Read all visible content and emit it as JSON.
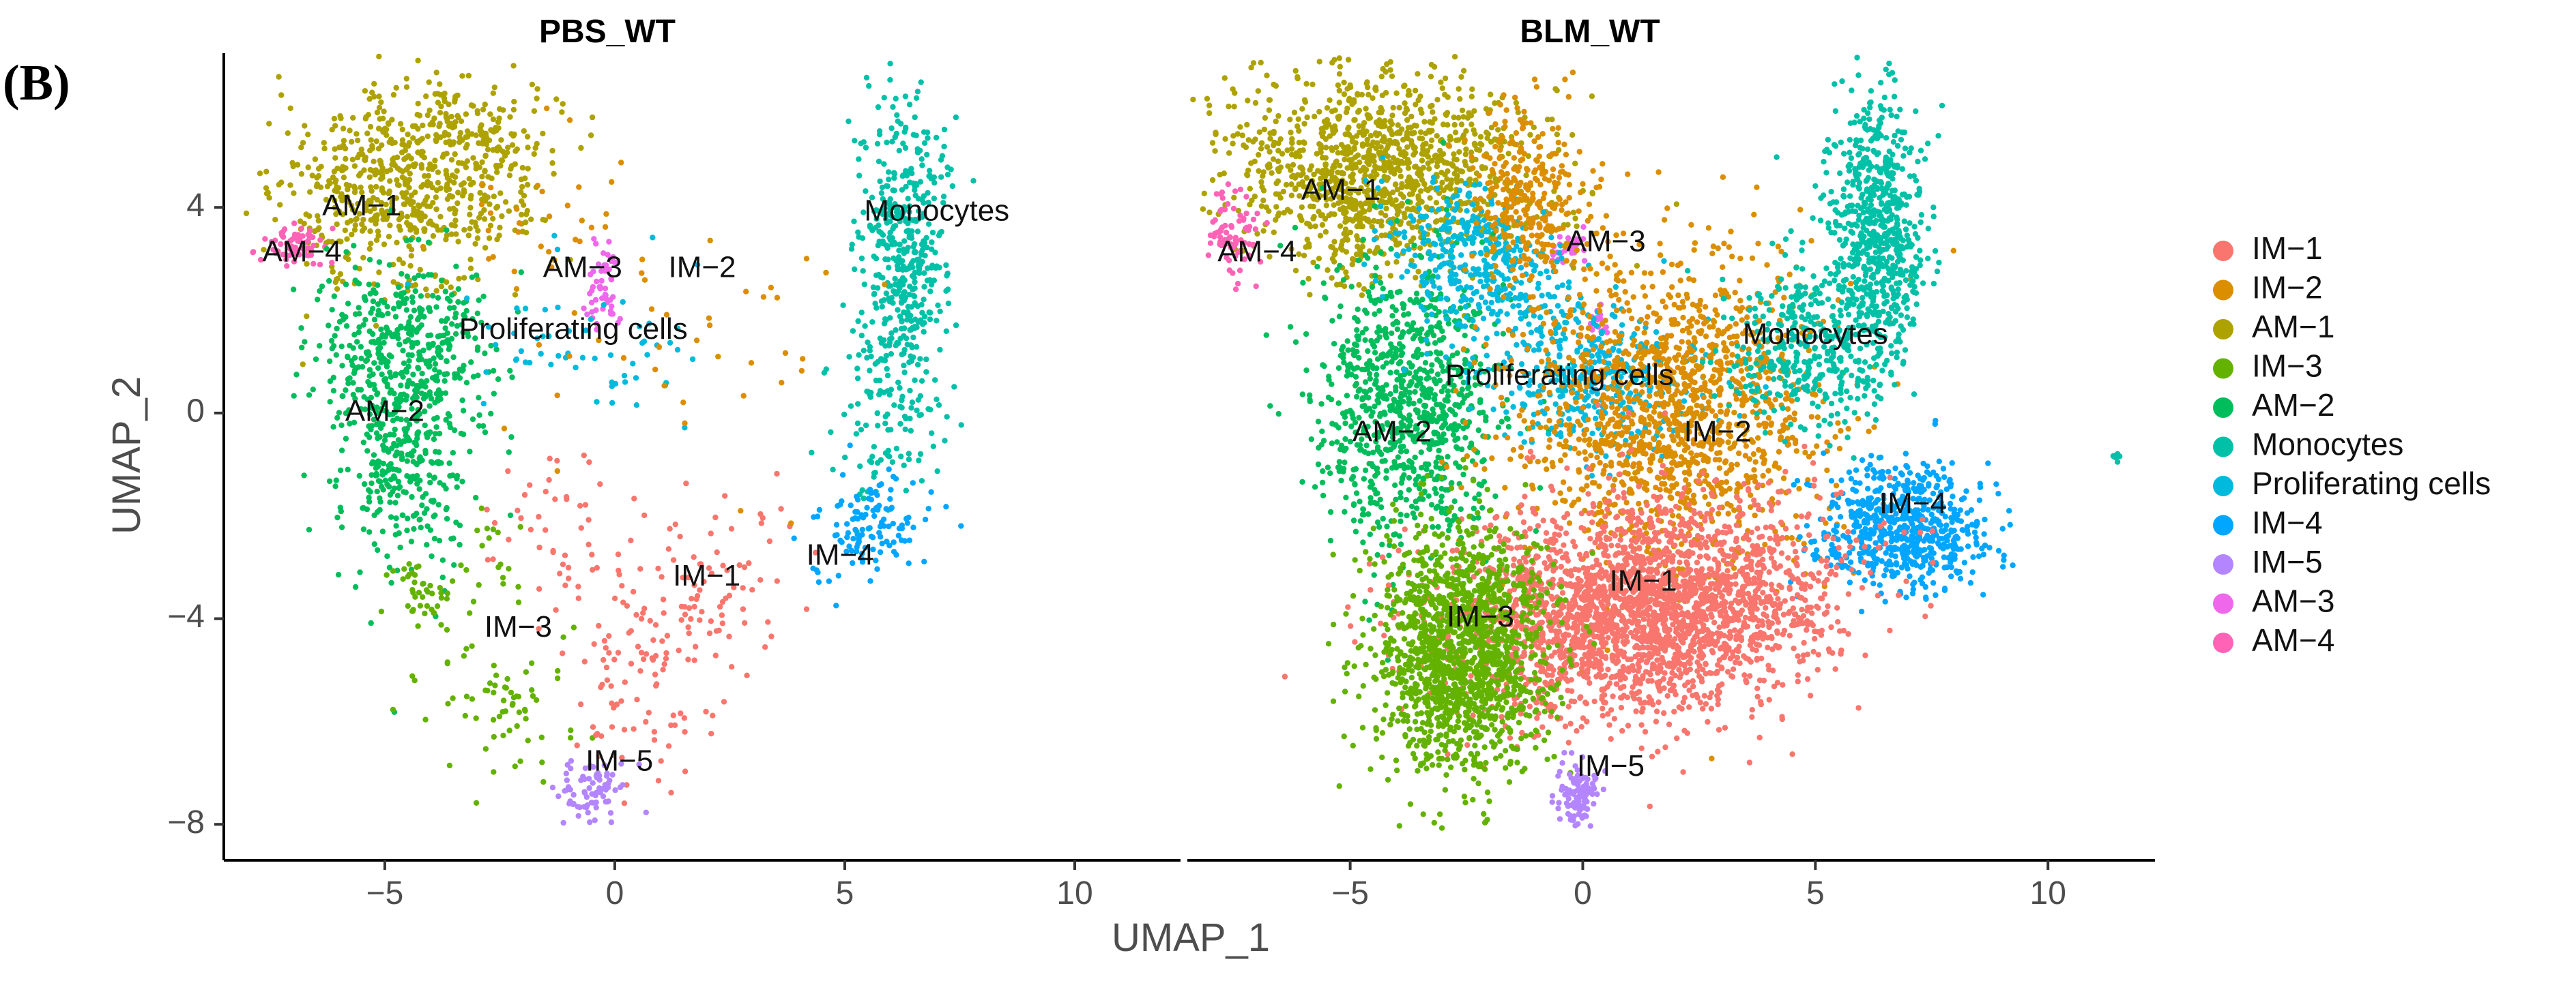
{
  "panel_label": "(B)",
  "colors": {
    "IM-1": "#F8766D",
    "IM-2": "#DB8E00",
    "AM-1": "#AEA200",
    "IM-3": "#64B200",
    "AM-2": "#00BD5C",
    "Monocytes": "#00C1A7",
    "Proliferating cells": "#00BADE",
    "IM-4": "#00A6FF",
    "IM-5": "#B385FF",
    "AM-3": "#EF67EB",
    "AM-4": "#FF63B6"
  },
  "chart_data": {
    "type": "scatter",
    "xlabel": "UMAP_1",
    "ylabel": "UMAP_2",
    "xlim": [
      -8.5,
      12.3
    ],
    "ylim": [
      -8.7,
      7.0
    ],
    "x_ticks": [
      -5,
      0,
      5,
      10
    ],
    "x_tick_labels": [
      "−5",
      "0",
      "5",
      "10"
    ],
    "y_ticks": [
      4,
      0,
      -4,
      -8
    ],
    "y_tick_labels": [
      "4",
      "0",
      "−4",
      "−8"
    ],
    "legend": {
      "position": "right",
      "entries": [
        "IM−1",
        "IM−2",
        "AM−1",
        "IM−3",
        "AM−2",
        "Monocytes",
        "Proliferating cells",
        "IM−4",
        "IM−5",
        "AM−3",
        "AM−4"
      ],
      "keys": [
        "IM-1",
        "IM-2",
        "AM-1",
        "IM-3",
        "AM-2",
        "Monocytes",
        "Proliferating cells",
        "IM-4",
        "IM-5",
        "AM-3",
        "AM-4"
      ]
    },
    "panels": [
      {
        "title": "PBS_WT",
        "labels": [
          {
            "text": "AM−1",
            "x": -5.5,
            "y": 4.0
          },
          {
            "text": "AM−4",
            "x": -6.8,
            "y": 3.1
          },
          {
            "text": "AM−3",
            "x": -0.7,
            "y": 2.8
          },
          {
            "text": "IM−2",
            "x": 1.9,
            "y": 2.8
          },
          {
            "text": "Monocytes",
            "x": 7.0,
            "y": 3.9
          },
          {
            "text": "Proliferating cells",
            "x": -0.9,
            "y": 1.6
          },
          {
            "text": "AM−2",
            "x": -5.0,
            "y": 0.0
          },
          {
            "text": "IM−1",
            "x": 2.0,
            "y": -3.2
          },
          {
            "text": "IM−4",
            "x": 4.9,
            "y": -2.8
          },
          {
            "text": "IM−3",
            "x": -2.1,
            "y": -4.2
          },
          {
            "text": "IM−5",
            "x": 0.1,
            "y": -6.8
          }
        ],
        "clusters": [
          {
            "name": "AM-1",
            "n": 600,
            "cx": -4.7,
            "cy": 4.3,
            "sx": 1.3,
            "sy": 1.0,
            "rot": 0.15
          },
          {
            "name": "AM-1",
            "n": 160,
            "cx": -3.0,
            "cy": 5.2,
            "sx": 0.8,
            "sy": 0.6,
            "rot": 0.0
          },
          {
            "name": "AM-4",
            "n": 70,
            "cx": -7.0,
            "cy": 3.25,
            "sx": 0.35,
            "sy": 0.2,
            "rot": 0.0
          },
          {
            "name": "AM-3",
            "n": 55,
            "cx": -0.2,
            "cy": 2.5,
            "sx": 0.18,
            "sy": 0.5,
            "rot": 0.0
          },
          {
            "name": "AM-2",
            "n": 420,
            "cx": -4.6,
            "cy": 1.4,
            "sx": 0.9,
            "sy": 0.9,
            "rot": 0.2
          },
          {
            "name": "AM-2",
            "n": 320,
            "cx": -4.6,
            "cy": -0.9,
            "sx": 0.7,
            "sy": 1.2,
            "rot": 0.0
          },
          {
            "name": "IM-3",
            "n": 45,
            "cx": -4.2,
            "cy": -3.6,
            "sx": 0.4,
            "sy": 0.4,
            "rot": 0.0
          },
          {
            "name": "IM-3",
            "n": 65,
            "cx": -2.3,
            "cy": -5.6,
            "sx": 0.9,
            "sy": 0.7,
            "rot": 0.0
          },
          {
            "name": "IM-3",
            "n": 20,
            "cx": -2.6,
            "cy": -2.6,
            "sx": 0.4,
            "sy": 0.6,
            "rot": 0.0
          },
          {
            "name": "Monocytes",
            "n": 480,
            "cx": 6.3,
            "cy": 3.0,
            "sx": 0.45,
            "sy": 1.5,
            "rot": 0.0
          },
          {
            "name": "Monocytes",
            "n": 80,
            "cx": 5.7,
            "cy": -0.2,
            "sx": 0.6,
            "sy": 0.9,
            "rot": 0.0
          },
          {
            "name": "IM-1",
            "n": 95,
            "cx": 2.0,
            "cy": -3.3,
            "sx": 1.2,
            "sy": 0.8,
            "rot": 0.35
          },
          {
            "name": "IM-1",
            "n": 80,
            "cx": 0.6,
            "cy": -5.3,
            "sx": 0.8,
            "sy": 1.0,
            "rot": 0.0
          },
          {
            "name": "IM-1",
            "n": 45,
            "cx": -1.4,
            "cy": -2.3,
            "sx": 0.7,
            "sy": 0.9,
            "rot": 0.0
          },
          {
            "name": "IM-4",
            "n": 120,
            "cx": 5.5,
            "cy": -2.3,
            "sx": 0.7,
            "sy": 0.45,
            "rot": 0.35
          },
          {
            "name": "IM-5",
            "n": 80,
            "cx": -0.5,
            "cy": -7.3,
            "sx": 0.35,
            "sy": 0.25,
            "rot": 0.0
          },
          {
            "name": "Proliferating cells",
            "n": 60,
            "cx": -0.5,
            "cy": 1.4,
            "sx": 1.3,
            "sy": 0.8,
            "rot": 0.0
          },
          {
            "name": "IM-2",
            "n": 40,
            "cx": 1.2,
            "cy": 1.8,
            "sx": 2.0,
            "sy": 1.5,
            "rot": 0.0
          },
          {
            "name": "IM-2",
            "n": 30,
            "cx": -1.6,
            "cy": 3.7,
            "sx": 0.8,
            "sy": 0.7,
            "rot": 0.0
          }
        ]
      },
      {
        "title": "BLM_WT",
        "labels": [
          {
            "text": "AM−1",
            "x": -5.2,
            "y": 4.3
          },
          {
            "text": "AM−4",
            "x": -7.0,
            "y": 3.1
          },
          {
            "text": "AM−3",
            "x": 0.5,
            "y": 3.3
          },
          {
            "text": "Monocytes",
            "x": 5.0,
            "y": 1.5
          },
          {
            "text": "Proliferating cells",
            "x": -0.5,
            "y": 0.7
          },
          {
            "text": "IM−2",
            "x": 2.9,
            "y": -0.4
          },
          {
            "text": "AM−2",
            "x": -4.1,
            "y": -0.4
          },
          {
            "text": "IM−4",
            "x": 7.1,
            "y": -1.8
          },
          {
            "text": "IM−1",
            "x": 1.3,
            "y": -3.3
          },
          {
            "text": "IM−3",
            "x": -2.2,
            "y": -4.0
          },
          {
            "text": "IM−5",
            "x": 0.6,
            "y": -6.9
          }
        ],
        "clusters": [
          {
            "name": "AM-1",
            "n": 1200,
            "cx": -4.3,
            "cy": 4.7,
            "sx": 1.6,
            "sy": 1.0,
            "rot": 0.0
          },
          {
            "name": "AM-4",
            "n": 80,
            "cx": -7.5,
            "cy": 3.5,
            "sx": 0.3,
            "sy": 0.4,
            "rot": 0.0
          },
          {
            "name": "AM-3",
            "n": 35,
            "cx": -0.3,
            "cy": 3.2,
            "sx": 0.2,
            "sy": 0.15,
            "rot": 0.0
          },
          {
            "name": "AM-3",
            "n": 20,
            "cx": 0.3,
            "cy": 1.8,
            "sx": 0.15,
            "sy": 0.2,
            "rot": 0.0
          },
          {
            "name": "AM-2",
            "n": 900,
            "cx": -3.8,
            "cy": 0.2,
            "sx": 1.0,
            "sy": 1.4,
            "rot": 0.0
          },
          {
            "name": "Proliferating cells",
            "n": 380,
            "cx": -2.2,
            "cy": 3.0,
            "sx": 1.0,
            "sy": 0.7,
            "rot": -0.4
          },
          {
            "name": "Proliferating cells",
            "n": 420,
            "cx": 0.2,
            "cy": 0.7,
            "sx": 1.2,
            "sy": 0.7,
            "rot": -0.2
          },
          {
            "name": "IM-2",
            "n": 1400,
            "cx": 1.8,
            "cy": 0.0,
            "sx": 1.6,
            "sy": 1.5,
            "rot": 0.0
          },
          {
            "name": "IM-2",
            "n": 300,
            "cx": -1.2,
            "cy": 4.2,
            "sx": 0.6,
            "sy": 0.9,
            "rot": 0.0
          },
          {
            "name": "Monocytes",
            "n": 700,
            "cx": 6.3,
            "cy": 3.5,
            "sx": 0.5,
            "sy": 1.3,
            "rot": 0.0
          },
          {
            "name": "Monocytes",
            "n": 350,
            "cx": 4.8,
            "cy": 1.2,
            "sx": 0.9,
            "sy": 0.8,
            "rot": 0.0
          },
          {
            "name": "Monocytes",
            "n": 8,
            "cx": 11.5,
            "cy": -0.8,
            "sx": 0.05,
            "sy": 0.08,
            "rot": 0.0
          },
          {
            "name": "IM-4",
            "n": 650,
            "cx": 6.8,
            "cy": -2.2,
            "sx": 0.9,
            "sy": 0.6,
            "rot": 0.0
          },
          {
            "name": "IM-1",
            "n": 2600,
            "cx": 1.3,
            "cy": -3.8,
            "sx": 2.0,
            "sy": 1.0,
            "rot": 0.1
          },
          {
            "name": "IM-3",
            "n": 1500,
            "cx": -2.6,
            "cy": -4.6,
            "sx": 0.95,
            "sy": 1.2,
            "rot": 0.0
          },
          {
            "name": "IM-5",
            "n": 110,
            "cx": -0.1,
            "cy": -7.4,
            "sx": 0.2,
            "sy": 0.35,
            "rot": 0.0
          }
        ]
      }
    ]
  }
}
